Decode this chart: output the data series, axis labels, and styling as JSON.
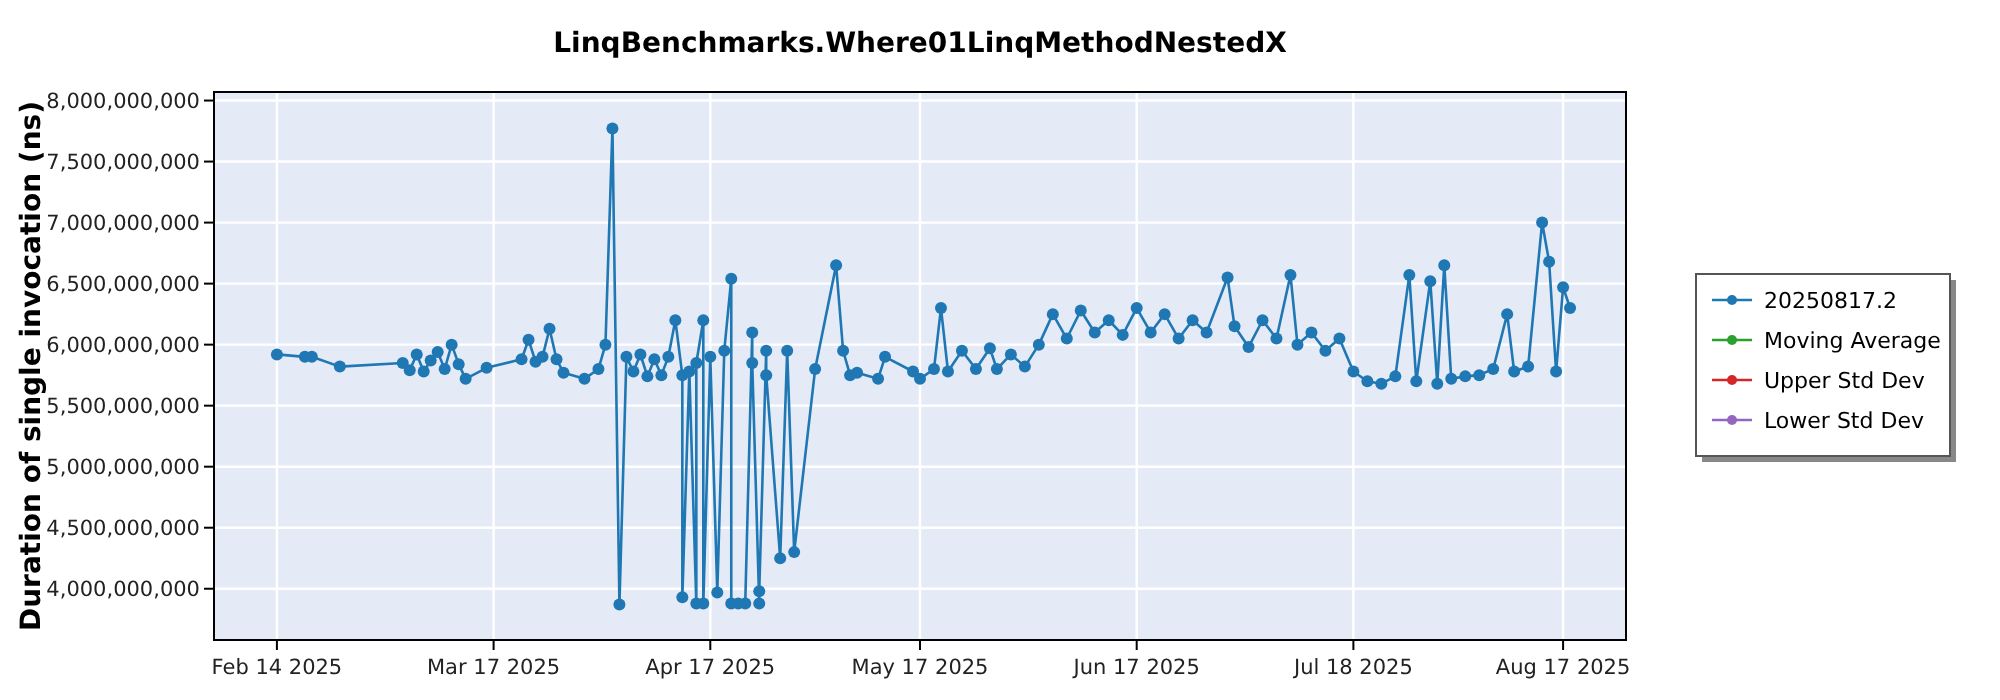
{
  "chart_data": {
    "type": "line",
    "title": "LinqBenchmarks.Where01LinqMethodNestedX",
    "ylabel": "Duration of single invocation (ns)",
    "xlim": [
      "2025-02-05",
      "2025-08-26"
    ],
    "ylim": [
      3580000000,
      8070000000
    ],
    "xticks": [
      {
        "value": "2025-02-14",
        "label": "Feb 14 2025"
      },
      {
        "value": "2025-03-17",
        "label": "Mar 17 2025"
      },
      {
        "value": "2025-04-17",
        "label": "Apr 17 2025"
      },
      {
        "value": "2025-05-17",
        "label": "May 17 2025"
      },
      {
        "value": "2025-06-17",
        "label": "Jun 17 2025"
      },
      {
        "value": "2025-07-18",
        "label": "Jul 18 2025"
      },
      {
        "value": "2025-08-17",
        "label": "Aug 17 2025"
      }
    ],
    "yticks": [
      {
        "value": 4000000000,
        "label": "4,000,000,000"
      },
      {
        "value": 4500000000,
        "label": "4,500,000,000"
      },
      {
        "value": 5000000000,
        "label": "5,000,000,000"
      },
      {
        "value": 5500000000,
        "label": "5,500,000,000"
      },
      {
        "value": 6000000000,
        "label": "6,000,000,000"
      },
      {
        "value": 6500000000,
        "label": "6,500,000,000"
      },
      {
        "value": 7000000000,
        "label": "7,000,000,000"
      },
      {
        "value": 7500000000,
        "label": "7,500,000,000"
      },
      {
        "value": 8000000000,
        "label": "8,000,000,000"
      }
    ],
    "grid": true,
    "legend": "right",
    "marker": "circle",
    "line_style": "solid",
    "series": [
      {
        "name": "20250817.2",
        "color": "#1f77b4",
        "x": [
          "2025-02-14",
          "2025-02-18",
          "2025-02-19",
          "2025-02-23",
          "2025-03-04",
          "2025-03-05",
          "2025-03-06",
          "2025-03-07",
          "2025-03-08",
          "2025-03-09",
          "2025-03-10",
          "2025-03-11",
          "2025-03-12",
          "2025-03-13",
          "2025-03-16",
          "2025-03-21",
          "2025-03-22",
          "2025-03-23",
          "2025-03-24",
          "2025-03-25",
          "2025-03-26",
          "2025-03-27",
          "2025-03-30",
          "2025-04-01",
          "2025-04-02",
          "2025-04-03",
          "2025-04-04",
          "2025-04-05",
          "2025-04-06",
          "2025-04-07",
          "2025-04-08",
          "2025-04-09",
          "2025-04-10",
          "2025-04-11",
          "2025-04-12",
          "2025-04-13",
          "2025-04-13",
          "2025-04-14",
          "2025-04-15",
          "2025-04-15",
          "2025-04-16",
          "2025-04-16",
          "2025-04-17",
          "2025-04-18",
          "2025-04-19",
          "2025-04-20",
          "2025-04-20",
          "2025-04-21",
          "2025-04-22",
          "2025-04-23",
          "2025-04-23",
          "2025-04-24",
          "2025-04-24",
          "2025-04-25",
          "2025-04-25",
          "2025-04-27",
          "2025-04-28",
          "2025-04-29",
          "2025-05-02",
          "2025-05-05",
          "2025-05-06",
          "2025-05-07",
          "2025-05-08",
          "2025-05-11",
          "2025-05-12",
          "2025-05-16",
          "2025-05-17",
          "2025-05-19",
          "2025-05-20",
          "2025-05-21",
          "2025-05-23",
          "2025-05-25",
          "2025-05-27",
          "2025-05-28",
          "2025-05-30",
          "2025-06-01",
          "2025-06-03",
          "2025-06-05",
          "2025-06-07",
          "2025-06-09",
          "2025-06-11",
          "2025-06-13",
          "2025-06-15",
          "2025-06-17",
          "2025-06-19",
          "2025-06-21",
          "2025-06-23",
          "2025-06-25",
          "2025-06-27",
          "2025-06-30",
          "2025-07-01",
          "2025-07-03",
          "2025-07-05",
          "2025-07-07",
          "2025-07-09",
          "2025-07-10",
          "2025-07-12",
          "2025-07-14",
          "2025-07-16",
          "2025-07-18",
          "2025-07-20",
          "2025-07-22",
          "2025-07-24",
          "2025-07-26",
          "2025-07-27",
          "2025-07-29",
          "2025-07-30",
          "2025-07-31",
          "2025-08-01",
          "2025-08-03",
          "2025-08-05",
          "2025-08-07",
          "2025-08-09",
          "2025-08-10",
          "2025-08-12",
          "2025-08-14",
          "2025-08-15",
          "2025-08-16",
          "2025-08-17",
          "2025-08-18"
        ],
        "values": [
          5920000000,
          5900000000,
          5900000000,
          5820000000,
          5850000000,
          5790000000,
          5920000000,
          5780000000,
          5870000000,
          5940000000,
          5800000000,
          6000000000,
          5840000000,
          5720000000,
          5810000000,
          5880000000,
          6040000000,
          5860000000,
          5900000000,
          6130000000,
          5880000000,
          5770000000,
          5720000000,
          5800000000,
          6000000000,
          7770000000,
          3870000000,
          5900000000,
          5780000000,
          5920000000,
          5740000000,
          5880000000,
          5750000000,
          5900000000,
          6200000000,
          5750000000,
          3930000000,
          5780000000,
          3880000000,
          5850000000,
          6200000000,
          3880000000,
          5900000000,
          3970000000,
          5950000000,
          6540000000,
          3880000000,
          3880000000,
          3880000000,
          6100000000,
          5850000000,
          3880000000,
          3980000000,
          5950000000,
          5750000000,
          4250000000,
          5950000000,
          4300000000,
          5800000000,
          6650000000,
          5950000000,
          5750000000,
          5770000000,
          5720000000,
          5900000000,
          5780000000,
          5720000000,
          5800000000,
          6300000000,
          5780000000,
          5950000000,
          5800000000,
          5970000000,
          5800000000,
          5920000000,
          5820000000,
          6000000000,
          6250000000,
          6050000000,
          6280000000,
          6100000000,
          6200000000,
          6080000000,
          6300000000,
          6100000000,
          6250000000,
          6050000000,
          6200000000,
          6100000000,
          6550000000,
          6150000000,
          5980000000,
          6200000000,
          6050000000,
          6570000000,
          6000000000,
          6100000000,
          5950000000,
          6050000000,
          5780000000,
          5700000000,
          5680000000,
          5740000000,
          6570000000,
          5700000000,
          6520000000,
          5680000000,
          6650000000,
          5720000000,
          5740000000,
          5750000000,
          5800000000,
          6250000000,
          5780000000,
          5820000000,
          7000000000,
          6680000000,
          5780000000,
          6470000000,
          6300000000
        ]
      },
      {
        "name": "Moving Average",
        "color": "#2ca02c"
      },
      {
        "name": "Upper Std Dev",
        "color": "#d62728"
      },
      {
        "name": "Lower Std Dev",
        "color": "#9467bd"
      }
    ]
  }
}
